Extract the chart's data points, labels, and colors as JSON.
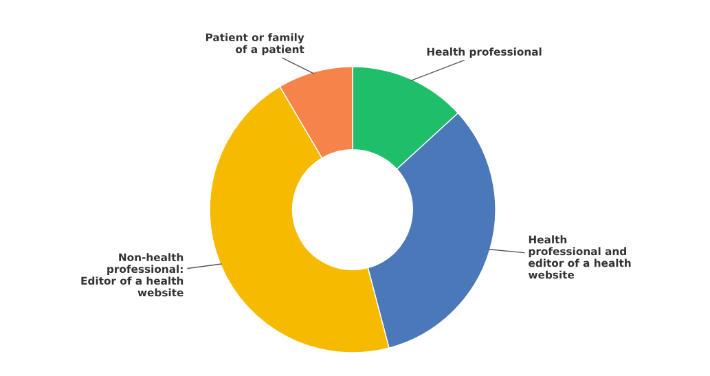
{
  "chart_data": {
    "type": "donut",
    "categories": [
      "Health professional",
      "Health\nprofessional and\neditor of a health\nwebsite",
      "Non-health\nprofessional:\nEditor of a health\nwebsite",
      "Patient or family\nof a patient"
    ],
    "values": [
      13.2,
      32.7,
      45.6,
      8.5
    ],
    "colors": [
      "#1ebe6a",
      "#4a78b8",
      "#f6bb00",
      "#f5834a"
    ]
  }
}
